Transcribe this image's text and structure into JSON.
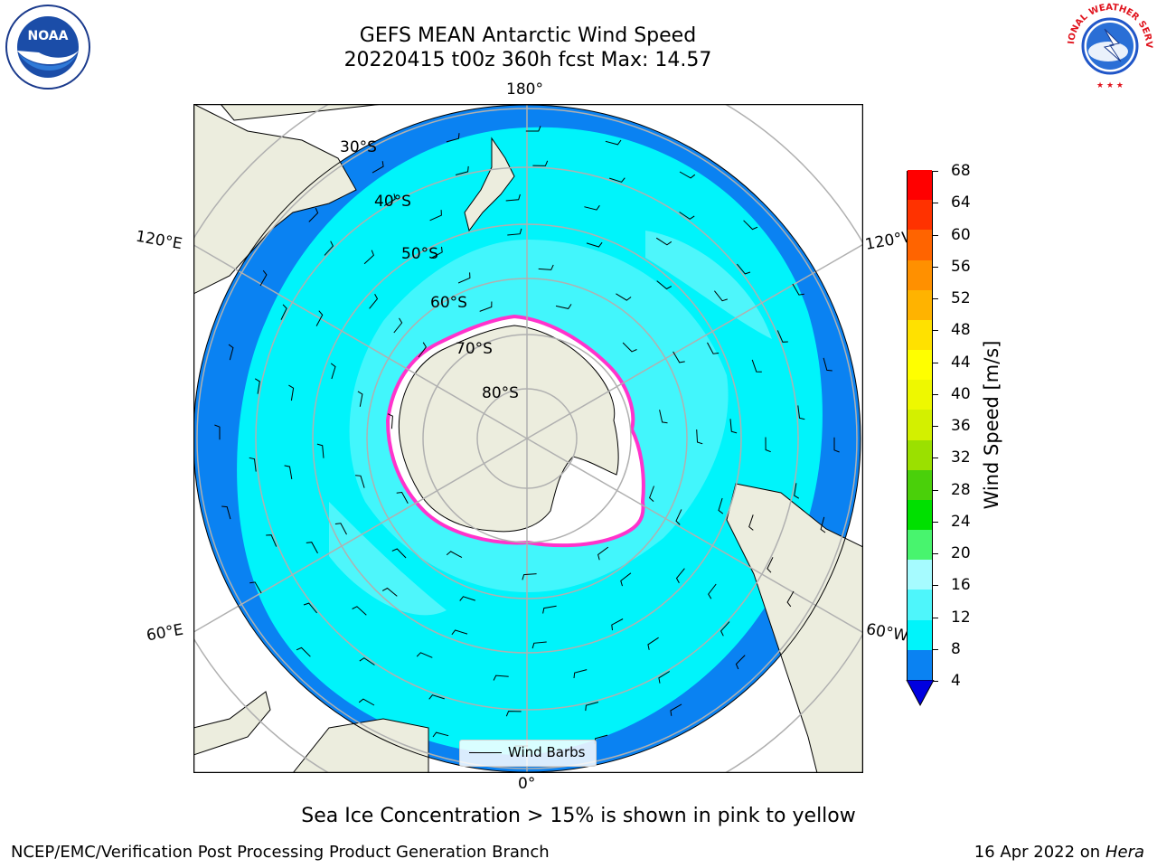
{
  "title": {
    "line1": "GEFS MEAN Antarctic Wind Speed",
    "line2": "20220415 t00z 360h fcst   Max: 14.57"
  },
  "map": {
    "projection": "south-polar-stereographic",
    "longitude_labels": {
      "top": "180°",
      "bottom": "0°",
      "upper_left": "120°E",
      "upper_right": "120°W",
      "lower_left": "60°E",
      "lower_right": "60°W"
    },
    "latitude_labels": [
      "30°S",
      "40°S",
      "50°S",
      "60°S",
      "70°S",
      "80°S"
    ],
    "colors": {
      "land": "#ecedde",
      "ocean_4_8": "#0a82f2",
      "ocean_8_12": "#00f4fb",
      "ocean_12_16": "#4ef6fb",
      "sea_ice_edge": "#ff33cc",
      "sea_ice_fill": "#ffffff",
      "graticule": "#b0b0b0"
    }
  },
  "legend": {
    "label": "Wind Barbs"
  },
  "colorbar": {
    "label": "Wind Speed [m/s]",
    "ticks": [
      "68",
      "64",
      "60",
      "56",
      "52",
      "48",
      "44",
      "40",
      "36",
      "32",
      "28",
      "24",
      "20",
      "16",
      "12",
      "8",
      "4"
    ],
    "colors_bottom_to_top": [
      "#0a82f2",
      "#00f4fb",
      "#4ef6fb",
      "#a6fbff",
      "#48f46e",
      "#00e000",
      "#4ad00a",
      "#9be000",
      "#d3f000",
      "#eef800",
      "#ffff00",
      "#ffe100",
      "#ffb300",
      "#ff9000",
      "#ff6400",
      "#ff3200",
      "#ff0000"
    ],
    "under_color": "#0000e0"
  },
  "subtitle": "Sea Ice Concentration > 15% is shown in pink to yellow",
  "footer": {
    "left": "NCEP/EMC/Verification Post Processing Product Generation Branch",
    "right_prefix": "16 Apr 2022 on ",
    "right_host": "Hera"
  },
  "logos": {
    "noaa": "NOAA",
    "nws_ring": "NATIONAL WEATHER SERVICE"
  }
}
